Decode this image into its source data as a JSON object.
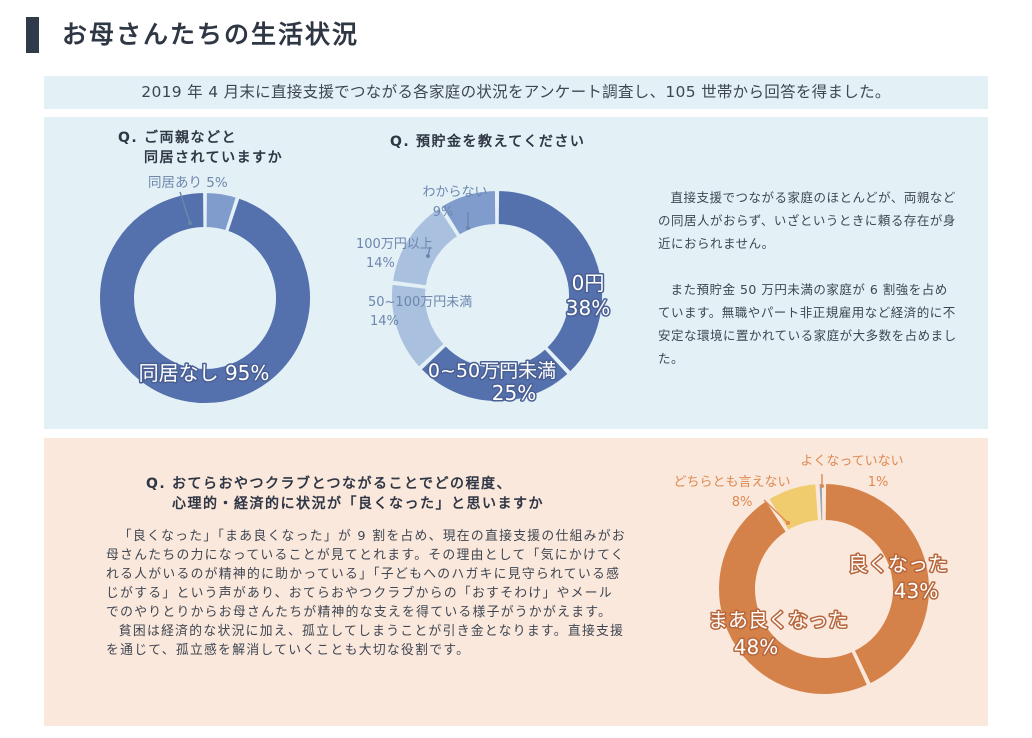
{
  "header": {
    "title": "お母さんたちの生活状況",
    "intro": "2019 年 4 月末に直接支援でつながる各家庭の状況をアンケート調査し、105 世帯から回答を得ました。"
  },
  "section1": {
    "q1": {
      "mark": "Q.",
      "line1": "ご両親などと",
      "line2": "同居されていますか"
    },
    "q2": {
      "mark": "Q.",
      "line1": "預貯金を教えてください"
    },
    "text": [
      "直接支援でつながる家庭のほとんどが、両親などの同居人がおらず、いざというときに頼る存在が身近におられません。",
      "また預貯金 50 万円未満の家庭が 6 割強を占めています。無職やパート非正規雇用など経済的に不安定な環境に置かれている家庭が大多数を占めました。"
    ]
  },
  "section2": {
    "q": {
      "mark": "Q.",
      "line1": "おてらおやつクラブとつながることでどの程度、",
      "line2": "心理的・経済的に状況が「良くなった」と思いますか"
    },
    "text": [
      "「良くなった」「まあ良くなった」が 9 割を占め、現在の直接支援の仕組みがお母さんたちの力になっていることが見てとれます。その理由として「気にかけてくれる人がいるのが精神的に助かっている」「子どもへのハガキに見守られている感じがする」という声があり、おてらおやつクラブからの「おすそわけ」やメールでのやりとりからお母さんたちが精神的な支えを得ている様子がうかがえます。",
      "貧困は経済的な状況に加え、孤立してしまうことが引き金となります。直接支援を通じて、孤立感を解消していくことも大切な役割です。"
    ]
  },
  "colors": {
    "blue_dark": "#5470ad",
    "blue_mid": "#7f9ccd",
    "blue_light": "#a9c1df",
    "orange_dark": "#d5824a",
    "orange_yellow": "#f1cc6e",
    "orange_gray": "#9aa6b2"
  },
  "chart_data": [
    {
      "type": "pie",
      "donut": true,
      "slices": [
        {
          "label": "同居あり",
          "pct": "5%",
          "value": 5,
          "color": "#7f9ccd"
        },
        {
          "label": "同居なし",
          "pct": "95%",
          "value": 95,
          "color": "#5470ad"
        }
      ]
    },
    {
      "type": "pie",
      "donut": true,
      "slices": [
        {
          "label": "0円",
          "pct": "38%",
          "value": 38,
          "color": "#5470ad"
        },
        {
          "label": "0~50万円未満",
          "pct": "25%",
          "value": 25,
          "color": "#5470ad"
        },
        {
          "label": "50~100万円未満",
          "pct": "14%",
          "value": 14,
          "color": "#a9c1df"
        },
        {
          "label": "100万円以上",
          "pct": "14%",
          "value": 14,
          "color": "#a9c1df"
        },
        {
          "label": "わからない",
          "pct": "9%",
          "value": 9,
          "color": "#7f9ccd"
        }
      ]
    },
    {
      "type": "pie",
      "donut": true,
      "slices": [
        {
          "label": "良くなった",
          "pct": "43%",
          "value": 43,
          "color": "#d5824a"
        },
        {
          "label": "まあ良くなった",
          "pct": "48%",
          "value": 48,
          "color": "#d5824a"
        },
        {
          "label": "どちらとも言えない",
          "pct": "8%",
          "value": 8,
          "color": "#f1cc6e"
        },
        {
          "label": "よくなっていない",
          "pct": "1%",
          "value": 1,
          "color": "#9aa6b2"
        }
      ]
    }
  ]
}
